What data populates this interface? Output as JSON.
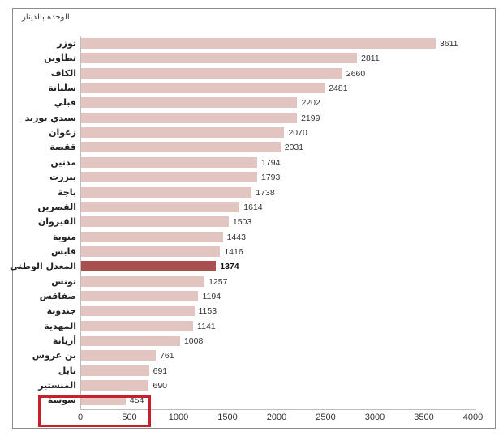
{
  "chart": {
    "unit_label": "الوحدة بالدينار",
    "colors": {
      "bar": "#e2c4c0",
      "highlight_bar": "#a94f4f",
      "highlight_box": "#c8202a",
      "frame": "#8c8c8c"
    }
  },
  "chart_data": {
    "type": "bar",
    "orientation": "horizontal",
    "title": "",
    "ylabel": "",
    "xlabel": "الوحدة بالدينار",
    "xlim": [
      0,
      4000
    ],
    "xticks": [
      "0",
      "500",
      "1000",
      "1500",
      "2000",
      "2500",
      "3000",
      "3500",
      "4000"
    ],
    "grid": false,
    "legend": null,
    "categories": [
      "توزر",
      "تطاوين",
      "الكاف",
      "سليانة",
      "قبلي",
      "سيدي بوزيد",
      "زغوان",
      "ققصة",
      "مدنين",
      "بنزرت",
      "باجة",
      "القصرين",
      "القيروان",
      "منوبة",
      "قابس",
      "المعدل الوطني",
      "تونس",
      "صفاقس",
      "جندوبة",
      "المهدية",
      "أريانة",
      "بن عروس",
      "نابل",
      "المنستير",
      "سوسة"
    ],
    "values": [
      3611,
      2811,
      2660,
      2481,
      2202,
      2199,
      2070,
      2031,
      1794,
      1793,
      1738,
      1614,
      1503,
      1443,
      1416,
      1374,
      1257,
      1194,
      1153,
      1141,
      1008,
      761,
      691,
      690,
      454
    ],
    "highlighted_category": "المعدل الوطني",
    "annotations": [
      {
        "type": "box",
        "target": "سوسة",
        "color": "#c8202a"
      }
    ]
  }
}
